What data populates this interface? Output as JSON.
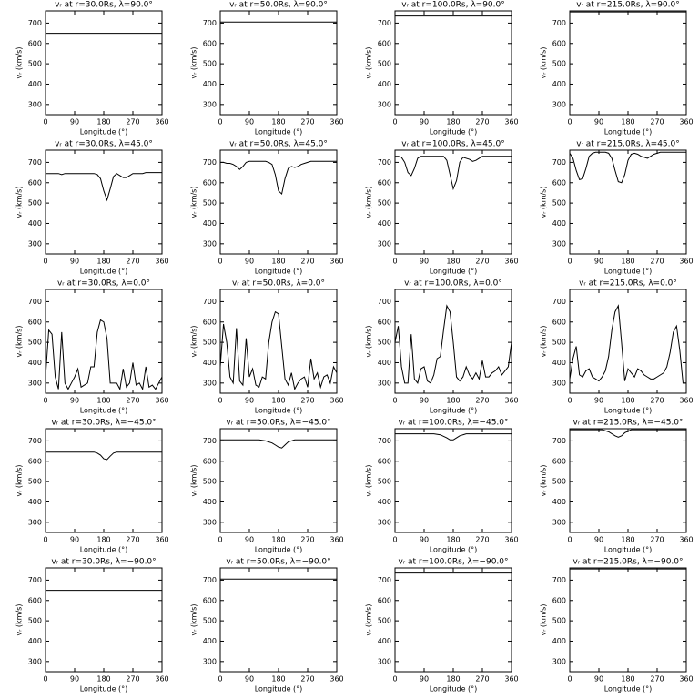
{
  "chart_data": [
    {
      "type": "line",
      "title": "vᵣ at r=30.0Rs, λ=90.0°",
      "xlabel": "Longitude (°)",
      "ylabel": "vᵣ (km/s)",
      "x": [
        0,
        360
      ],
      "values": [
        650,
        650
      ],
      "color": "#000000",
      "xlim": [
        0,
        360
      ],
      "ylim": [
        250,
        760
      ],
      "xticks": [
        0,
        90,
        180,
        270,
        360
      ],
      "yticks": [
        300,
        400,
        500,
        600,
        700
      ]
    },
    {
      "type": "line",
      "title": "vᵣ at r=50.0Rs, λ=90.0°",
      "xlabel": "Longitude (°)",
      "ylabel": "vᵣ (km/s)",
      "x": [
        0,
        360
      ],
      "values": [
        705,
        705
      ],
      "color": "#000000",
      "xlim": [
        0,
        360
      ],
      "ylim": [
        250,
        760
      ],
      "xticks": [
        0,
        90,
        180,
        270,
        360
      ],
      "yticks": [
        300,
        400,
        500,
        600,
        700
      ]
    },
    {
      "type": "line",
      "title": "vᵣ at r=100.0Rs, λ=90.0°",
      "xlabel": "Longitude (°)",
      "ylabel": "vᵣ (km/s)",
      "x": [
        0,
        360
      ],
      "values": [
        735,
        735
      ],
      "color": "#000000",
      "xlim": [
        0,
        360
      ],
      "ylim": [
        250,
        760
      ],
      "xticks": [
        0,
        90,
        180,
        270,
        360
      ],
      "yticks": [
        300,
        400,
        500,
        600,
        700
      ]
    },
    {
      "type": "line",
      "title": "vᵣ at r=215.0Rs, λ=90.0°",
      "xlabel": "Longitude (°)",
      "ylabel": "vᵣ (km/s)",
      "x": [
        0,
        360
      ],
      "values": [
        755,
        755
      ],
      "color": "#000000",
      "xlim": [
        0,
        360
      ],
      "ylim": [
        250,
        760
      ],
      "xticks": [
        0,
        90,
        180,
        270,
        360
      ],
      "yticks": [
        300,
        400,
        500,
        600,
        700
      ]
    },
    {
      "type": "line",
      "title": "vᵣ at r=30.0Rs, λ=45.0°",
      "xlabel": "Longitude (°)",
      "ylabel": "vᵣ (km/s)",
      "x": [
        0,
        10,
        20,
        30,
        40,
        50,
        60,
        70,
        80,
        90,
        100,
        110,
        120,
        130,
        140,
        150,
        160,
        170,
        180,
        190,
        200,
        210,
        220,
        230,
        240,
        250,
        260,
        270,
        280,
        290,
        300,
        310,
        320,
        330,
        340,
        350,
        360
      ],
      "values": [
        645,
        645,
        645,
        645,
        645,
        640,
        645,
        645,
        645,
        645,
        645,
        645,
        645,
        645,
        645,
        645,
        640,
        620,
        560,
        515,
        570,
        630,
        645,
        635,
        625,
        625,
        635,
        645,
        645,
        645,
        645,
        650,
        650,
        650,
        650,
        650,
        650
      ],
      "color": "#000000",
      "xlim": [
        0,
        360
      ],
      "ylim": [
        250,
        760
      ],
      "xticks": [
        0,
        90,
        180,
        270,
        360
      ],
      "yticks": [
        300,
        400,
        500,
        600,
        700
      ]
    },
    {
      "type": "line",
      "title": "vᵣ at r=50.0Rs, λ=45.0°",
      "xlabel": "Longitude (°)",
      "ylabel": "vᵣ (km/s)",
      "x": [
        0,
        10,
        20,
        30,
        40,
        50,
        60,
        70,
        80,
        90,
        100,
        110,
        120,
        130,
        140,
        150,
        160,
        170,
        180,
        190,
        200,
        210,
        220,
        230,
        240,
        250,
        260,
        270,
        280,
        290,
        300,
        310,
        320,
        330,
        340,
        350,
        360
      ],
      "values": [
        700,
        700,
        695,
        695,
        690,
        680,
        665,
        680,
        700,
        705,
        705,
        705,
        705,
        705,
        705,
        700,
        690,
        640,
        560,
        545,
        620,
        670,
        680,
        675,
        680,
        690,
        695,
        700,
        705,
        705,
        705,
        705,
        705,
        705,
        705,
        705,
        705
      ],
      "color": "#000000",
      "xlim": [
        0,
        360
      ],
      "ylim": [
        250,
        760
      ],
      "xticks": [
        0,
        90,
        180,
        270,
        360
      ],
      "yticks": [
        300,
        400,
        500,
        600,
        700
      ]
    },
    {
      "type": "line",
      "title": "vᵣ at r=100.0Rs, λ=45.0°",
      "xlabel": "Longitude (°)",
      "ylabel": "vᵣ (km/s)",
      "x": [
        0,
        10,
        20,
        30,
        40,
        50,
        60,
        70,
        80,
        90,
        100,
        110,
        120,
        130,
        140,
        150,
        160,
        170,
        180,
        190,
        200,
        210,
        220,
        230,
        240,
        250,
        260,
        270,
        280,
        290,
        300,
        310,
        320,
        330,
        340,
        350,
        360
      ],
      "values": [
        730,
        730,
        725,
        700,
        650,
        635,
        670,
        720,
        730,
        730,
        730,
        730,
        730,
        730,
        730,
        730,
        710,
        640,
        570,
        610,
        700,
        725,
        720,
        715,
        705,
        710,
        720,
        730,
        730,
        730,
        730,
        730,
        730,
        730,
        730,
        730,
        730
      ],
      "color": "#000000",
      "xlim": [
        0,
        360
      ],
      "ylim": [
        250,
        760
      ],
      "xticks": [
        0,
        90,
        180,
        270,
        360
      ],
      "yticks": [
        300,
        400,
        500,
        600,
        700
      ]
    },
    {
      "type": "line",
      "title": "vᵣ at r=215.0Rs, λ=45.0°",
      "xlabel": "Longitude (°)",
      "ylabel": "vᵣ (km/s)",
      "x": [
        0,
        10,
        20,
        30,
        40,
        50,
        60,
        70,
        80,
        90,
        100,
        110,
        120,
        130,
        140,
        150,
        160,
        170,
        180,
        190,
        200,
        210,
        220,
        230,
        240,
        250,
        260,
        270,
        280,
        290,
        300,
        310,
        320,
        330,
        340,
        350,
        360
      ],
      "values": [
        745,
        720,
        660,
        615,
        620,
        670,
        730,
        745,
        750,
        750,
        750,
        750,
        745,
        720,
        660,
        605,
        600,
        640,
        710,
        740,
        745,
        740,
        730,
        725,
        720,
        730,
        740,
        745,
        750,
        750,
        750,
        750,
        750,
        750,
        750,
        750,
        750
      ],
      "color": "#000000",
      "xlim": [
        0,
        360
      ],
      "ylim": [
        250,
        760
      ],
      "xticks": [
        0,
        90,
        180,
        270,
        360
      ],
      "yticks": [
        300,
        400,
        500,
        600,
        700
      ]
    },
    {
      "type": "line",
      "title": "vᵣ at r=30.0Rs, λ=0.0°",
      "xlabel": "Longitude (°)",
      "ylabel": "vᵣ (km/s)",
      "x": [
        0,
        10,
        20,
        30,
        40,
        50,
        60,
        70,
        80,
        90,
        100,
        110,
        120,
        130,
        140,
        150,
        160,
        170,
        180,
        190,
        200,
        210,
        220,
        230,
        240,
        250,
        260,
        270,
        280,
        290,
        300,
        310,
        320,
        330,
        340,
        350,
        360
      ],
      "values": [
        330,
        560,
        540,
        330,
        270,
        550,
        300,
        270,
        300,
        330,
        370,
        280,
        290,
        300,
        380,
        380,
        550,
        610,
        600,
        520,
        300,
        300,
        300,
        270,
        370,
        280,
        300,
        400,
        290,
        300,
        270,
        380,
        280,
        290,
        270,
        300,
        330
      ],
      "color": "#000000",
      "xlim": [
        0,
        360
      ],
      "ylim": [
        250,
        760
      ],
      "xticks": [
        0,
        90,
        180,
        270,
        360
      ],
      "yticks": [
        300,
        400,
        500,
        600,
        700
      ]
    },
    {
      "type": "line",
      "title": "vᵣ at r=50.0Rs, λ=0.0°",
      "xlabel": "Longitude (°)",
      "ylabel": "vᵣ (km/s)",
      "x": [
        0,
        10,
        20,
        30,
        40,
        50,
        60,
        70,
        80,
        90,
        100,
        110,
        120,
        130,
        140,
        150,
        160,
        170,
        180,
        190,
        200,
        210,
        220,
        230,
        240,
        250,
        260,
        270,
        280,
        290,
        300,
        310,
        320,
        330,
        340,
        350,
        360
      ],
      "values": [
        380,
        590,
        500,
        330,
        300,
        570,
        310,
        290,
        520,
        330,
        370,
        290,
        280,
        330,
        320,
        500,
        600,
        650,
        640,
        480,
        320,
        290,
        350,
        270,
        300,
        320,
        330,
        280,
        420,
        320,
        350,
        280,
        330,
        340,
        300,
        380,
        350
      ],
      "color": "#000000",
      "xlim": [
        0,
        360
      ],
      "ylim": [
        250,
        760
      ],
      "xticks": [
        0,
        90,
        180,
        270,
        360
      ],
      "yticks": [
        300,
        400,
        500,
        600,
        700
      ]
    },
    {
      "type": "line",
      "title": "vᵣ at r=100.0Rs, λ=0.0°",
      "xlabel": "Longitude (°)",
      "ylabel": "vᵣ (km/s)",
      "x": [
        0,
        10,
        20,
        30,
        40,
        50,
        60,
        70,
        80,
        90,
        100,
        110,
        120,
        130,
        140,
        150,
        160,
        170,
        180,
        190,
        200,
        210,
        220,
        230,
        240,
        250,
        260,
        270,
        280,
        290,
        300,
        310,
        320,
        330,
        340,
        350,
        360
      ],
      "values": [
        500,
        580,
        380,
        300,
        300,
        540,
        320,
        300,
        370,
        380,
        310,
        300,
        340,
        420,
        430,
        560,
        680,
        650,
        500,
        330,
        310,
        330,
        380,
        340,
        320,
        350,
        320,
        410,
        330,
        330,
        350,
        360,
        380,
        340,
        360,
        380,
        500
      ],
      "color": "#000000",
      "xlim": [
        0,
        360
      ],
      "ylim": [
        250,
        760
      ],
      "xticks": [
        0,
        90,
        180,
        270,
        360
      ],
      "yticks": [
        300,
        400,
        500,
        600,
        700
      ]
    },
    {
      "type": "line",
      "title": "vᵣ at r=215.0Rs, λ=0.0°",
      "xlabel": "Longitude (°)",
      "ylabel": "vᵣ (km/s)",
      "x": [
        0,
        10,
        20,
        30,
        40,
        50,
        60,
        70,
        80,
        90,
        100,
        110,
        120,
        130,
        140,
        150,
        160,
        170,
        180,
        190,
        200,
        210,
        220,
        230,
        240,
        250,
        260,
        270,
        280,
        290,
        300,
        310,
        320,
        330,
        340,
        350,
        360
      ],
      "values": [
        320,
        420,
        480,
        340,
        330,
        360,
        370,
        330,
        320,
        310,
        330,
        360,
        430,
        560,
        650,
        680,
        500,
        310,
        370,
        350,
        330,
        370,
        360,
        340,
        330,
        320,
        320,
        330,
        340,
        350,
        380,
        450,
        550,
        580,
        460,
        300,
        300
      ],
      "color": "#000000",
      "xlim": [
        0,
        360
      ],
      "ylim": [
        250,
        760
      ],
      "xticks": [
        0,
        90,
        180,
        270,
        360
      ],
      "yticks": [
        300,
        400,
        500,
        600,
        700
      ]
    },
    {
      "type": "line",
      "title": "vᵣ at r=30.0Rs, λ=−45.0°",
      "xlabel": "Longitude (°)",
      "ylabel": "vᵣ (km/s)",
      "x": [
        0,
        150,
        160,
        170,
        180,
        190,
        200,
        210,
        220,
        360
      ],
      "values": [
        645,
        645,
        640,
        630,
        612,
        608,
        625,
        640,
        645,
        645
      ],
      "color": "#000000",
      "xlim": [
        0,
        360
      ],
      "ylim": [
        250,
        760
      ],
      "xticks": [
        0,
        90,
        180,
        270,
        360
      ],
      "yticks": [
        300,
        400,
        500,
        600,
        700
      ]
    },
    {
      "type": "line",
      "title": "vᵣ at r=50.0Rs, λ=−45.0°",
      "xlabel": "Longitude (°)",
      "ylabel": "vᵣ (km/s)",
      "x": [
        0,
        120,
        140,
        160,
        170,
        180,
        190,
        200,
        210,
        230,
        360
      ],
      "values": [
        705,
        705,
        700,
        690,
        680,
        670,
        665,
        680,
        695,
        705,
        705
      ],
      "color": "#000000",
      "xlim": [
        0,
        360
      ],
      "ylim": [
        250,
        760
      ],
      "xticks": [
        0,
        90,
        180,
        270,
        360
      ],
      "yticks": [
        300,
        400,
        500,
        600,
        700
      ]
    },
    {
      "type": "line",
      "title": "vᵣ at r=100.0Rs, λ=−45.0°",
      "xlabel": "Longitude (°)",
      "ylabel": "vᵣ (km/s)",
      "x": [
        0,
        120,
        140,
        160,
        170,
        180,
        190,
        200,
        220,
        360
      ],
      "values": [
        735,
        735,
        730,
        715,
        705,
        705,
        715,
        725,
        735,
        735
      ],
      "color": "#000000",
      "xlim": [
        0,
        360
      ],
      "ylim": [
        250,
        760
      ],
      "xticks": [
        0,
        90,
        180,
        270,
        360
      ],
      "yticks": [
        300,
        400,
        500,
        600,
        700
      ]
    },
    {
      "type": "line",
      "title": "vᵣ at r=215.0Rs, λ=−45.0°",
      "xlabel": "Longitude (°)",
      "ylabel": "vᵣ (km/s)",
      "x": [
        0,
        100,
        120,
        140,
        150,
        160,
        170,
        190,
        360
      ],
      "values": [
        755,
        755,
        745,
        725,
        718,
        725,
        740,
        755,
        755
      ],
      "color": "#000000",
      "xlim": [
        0,
        360
      ],
      "ylim": [
        250,
        760
      ],
      "xticks": [
        0,
        90,
        180,
        270,
        360
      ],
      "yticks": [
        300,
        400,
        500,
        600,
        700
      ]
    },
    {
      "type": "line",
      "title": "vᵣ at r=30.0Rs, λ=−90.0°",
      "xlabel": "Longitude (°)",
      "ylabel": "vᵣ (km/s)",
      "x": [
        0,
        360
      ],
      "values": [
        650,
        650
      ],
      "color": "#000000",
      "xlim": [
        0,
        360
      ],
      "ylim": [
        250,
        760
      ],
      "xticks": [
        0,
        90,
        180,
        270,
        360
      ],
      "yticks": [
        300,
        400,
        500,
        600,
        700
      ]
    },
    {
      "type": "line",
      "title": "vᵣ at r=50.0Rs, λ=−90.0°",
      "xlabel": "Longitude (°)",
      "ylabel": "vᵣ (km/s)",
      "x": [
        0,
        360
      ],
      "values": [
        705,
        705
      ],
      "color": "#000000",
      "xlim": [
        0,
        360
      ],
      "ylim": [
        250,
        760
      ],
      "xticks": [
        0,
        90,
        180,
        270,
        360
      ],
      "yticks": [
        300,
        400,
        500,
        600,
        700
      ]
    },
    {
      "type": "line",
      "title": "vᵣ at r=100.0Rs, λ=−90.0°",
      "xlabel": "Longitude (°)",
      "ylabel": "vᵣ (km/s)",
      "x": [
        0,
        360
      ],
      "values": [
        735,
        735
      ],
      "color": "#000000",
      "xlim": [
        0,
        360
      ],
      "ylim": [
        250,
        760
      ],
      "xticks": [
        0,
        90,
        180,
        270,
        360
      ],
      "yticks": [
        300,
        400,
        500,
        600,
        700
      ]
    },
    {
      "type": "line",
      "title": "vᵣ at r=215.0Rs, λ=−90.0°",
      "xlabel": "Longitude (°)",
      "ylabel": "vᵣ (km/s)",
      "x": [
        0,
        360
      ],
      "values": [
        755,
        755
      ],
      "color": "#000000",
      "xlim": [
        0,
        360
      ],
      "ylim": [
        250,
        760
      ],
      "xticks": [
        0,
        90,
        180,
        270,
        360
      ],
      "yticks": [
        300,
        400,
        500,
        600,
        700
      ]
    }
  ]
}
